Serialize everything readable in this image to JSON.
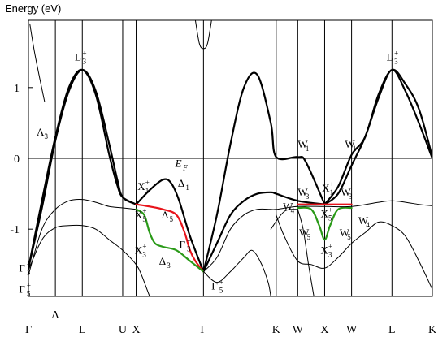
{
  "chart_data": {
    "type": "line",
    "title": "",
    "ylabel": "Energy (eV)",
    "xlabel": "",
    "ylim": [
      -1.95,
      1.95
    ],
    "grid": false,
    "legend": "none",
    "x_ticks": [
      {
        "label": "Γ",
        "sub": "",
        "sup": "",
        "x": 0
      },
      {
        "label": "Λ",
        "sub": "",
        "sup": "",
        "x": 1
      },
      {
        "label": "L",
        "sub": "",
        "sup": "",
        "x": 2
      },
      {
        "label": "U",
        "sub": "",
        "sup": "",
        "x": 3.5
      },
      {
        "label": "X",
        "sub": "",
        "sup": "",
        "x": 4
      },
      {
        "label": "Γ",
        "sub": "",
        "sup": "",
        "x": 6.5
      },
      {
        "label": "K",
        "sub": "",
        "sup": "",
        "x": 9.2
      },
      {
        "label": "W",
        "sub": "",
        "sup": "",
        "x": 10
      },
      {
        "label": "X",
        "sub": "",
        "sup": "",
        "x": 11
      },
      {
        "label": "W",
        "sub": "",
        "sup": "",
        "x": 12
      },
      {
        "label": "L",
        "sub": "",
        "sup": "",
        "x": 13.5
      },
      {
        "label": "K",
        "sub": "",
        "sup": "",
        "x": 15
      }
    ],
    "y_ticks": [
      {
        "label": "1",
        "value": 1
      },
      {
        "label": "0",
        "value": 0
      },
      {
        "label": "-1",
        "value": -1
      }
    ],
    "fermi_level": 0,
    "series": [
      {
        "color": "#000000",
        "width": 1,
        "points": [
          [
            0.05,
            1.9
          ],
          [
            0.25,
            1.45
          ],
          [
            0.6,
            0.8
          ]
        ]
      },
      {
        "color": "#000000",
        "width": 1,
        "points": [
          [
            0,
            -1.65
          ],
          [
            0.5,
            -1.0
          ],
          [
            1,
            -0.72
          ],
          [
            1.5,
            -0.6
          ],
          [
            2,
            -0.58
          ],
          [
            2.5,
            -0.62
          ],
          [
            3,
            -0.68
          ],
          [
            3.5,
            -0.7
          ],
          [
            4,
            -0.72
          ]
        ]
      },
      {
        "color": "#000000",
        "width": 1,
        "points": [
          [
            0,
            -1.58
          ],
          [
            0.5,
            -1.15
          ],
          [
            1,
            -0.98
          ],
          [
            1.5,
            -0.95
          ],
          [
            2,
            -0.95
          ],
          [
            2.5,
            -1.0
          ],
          [
            3,
            -1.15
          ],
          [
            3.5,
            -1.3
          ],
          [
            4,
            -1.5
          ],
          [
            4.2,
            -1.65
          ],
          [
            4.5,
            -1.95
          ]
        ]
      },
      {
        "color": "#000000",
        "width": 2.2,
        "points": [
          [
            0,
            -1.55
          ],
          [
            0.5,
            -0.7
          ],
          [
            1,
            0.25
          ],
          [
            1.5,
            0.95
          ],
          [
            2,
            1.25
          ],
          [
            2.5,
            0.95
          ],
          [
            3,
            0.2
          ],
          [
            3.3,
            -0.3
          ],
          [
            3.5,
            -0.55
          ],
          [
            4,
            -0.65
          ]
        ]
      },
      {
        "color": "#000000",
        "width": 2.2,
        "points": [
          [
            0,
            -1.55
          ],
          [
            0.5,
            -0.6
          ],
          [
            1,
            0.3
          ],
          [
            1.5,
            1.0
          ],
          [
            2,
            1.25
          ],
          [
            2.5,
            0.9
          ],
          [
            3,
            0.05
          ],
          [
            3.3,
            -0.38
          ],
          [
            3.5,
            -0.55
          ],
          [
            4,
            -0.65
          ]
        ]
      },
      {
        "color": "#000000",
        "width": 2.2,
        "points": [
          [
            4,
            -0.65
          ],
          [
            4.5,
            -0.45
          ],
          [
            5,
            -0.3
          ],
          [
            5.3,
            -0.35
          ],
          [
            5.6,
            -0.6
          ],
          [
            6,
            -1.1
          ],
          [
            6.5,
            -1.6
          ]
        ]
      },
      {
        "color": "#000000",
        "width": 2.2,
        "points": [
          [
            6.5,
            -1.6
          ],
          [
            7,
            -0.8
          ],
          [
            7.5,
            0.2
          ],
          [
            8,
            1.0
          ],
          [
            8.5,
            1.18
          ],
          [
            9,
            0.5
          ],
          [
            9.2,
            0.02
          ],
          [
            10,
            0.02
          ],
          [
            10.3,
            -0.05
          ],
          [
            11,
            -0.65
          ]
        ]
      },
      {
        "color": "#000000",
        "width": 2.2,
        "points": [
          [
            6.5,
            -1.6
          ],
          [
            7,
            -1.2
          ],
          [
            7.5,
            -0.8
          ],
          [
            8,
            -0.6
          ],
          [
            8.5,
            -0.5
          ],
          [
            9,
            -0.48
          ],
          [
            9.2,
            -0.5
          ],
          [
            10,
            -0.6
          ],
          [
            11,
            -0.65
          ]
        ]
      },
      {
        "color": "#000000",
        "width": 2.2,
        "points": [
          [
            11,
            -0.65
          ],
          [
            11.5,
            -0.4
          ],
          [
            12,
            0.05
          ],
          [
            12.5,
            0.3
          ],
          [
            13,
            0.9
          ],
          [
            13.5,
            1.25
          ],
          [
            14,
            1.05
          ],
          [
            14.5,
            0.7
          ],
          [
            15,
            0.02
          ]
        ]
      },
      {
        "color": "#000000",
        "width": 2.2,
        "points": [
          [
            11,
            -0.65
          ],
          [
            11.5,
            -0.5
          ],
          [
            12,
            -0.1
          ],
          [
            12.5,
            0.3
          ],
          [
            13,
            0.85
          ],
          [
            13.5,
            1.25
          ],
          [
            14,
            0.95
          ],
          [
            14.5,
            0.5
          ],
          [
            15,
            0.0
          ]
        ]
      },
      {
        "color": "#e8141b",
        "width": 2.2,
        "points": [
          [
            4,
            -0.65
          ],
          [
            4.5,
            -0.68
          ],
          [
            5,
            -0.72
          ],
          [
            5.5,
            -0.8
          ],
          [
            5.8,
            -1.05
          ],
          [
            6,
            -1.3
          ],
          [
            6.2,
            -1.45
          ],
          [
            6.5,
            -1.6
          ]
        ]
      },
      {
        "color": "#e8141b",
        "width": 2.2,
        "points": [
          [
            10,
            -0.65
          ],
          [
            10.5,
            -0.65
          ],
          [
            11,
            -0.65
          ],
          [
            11.5,
            -0.65
          ],
          [
            12,
            -0.65
          ]
        ]
      },
      {
        "color": "#2a9a18",
        "width": 2.2,
        "points": [
          [
            4,
            -0.72
          ],
          [
            4.3,
            -0.8
          ],
          [
            4.5,
            -1.05
          ],
          [
            4.7,
            -1.2
          ],
          [
            5,
            -1.25
          ],
          [
            5.5,
            -1.3
          ],
          [
            6,
            -1.45
          ],
          [
            6.5,
            -1.6
          ]
        ]
      },
      {
        "color": "#2a9a18",
        "width": 2.2,
        "points": [
          [
            10,
            -0.7
          ],
          [
            10.5,
            -0.72
          ],
          [
            10.8,
            -0.95
          ],
          [
            11,
            -1.15
          ],
          [
            11.2,
            -0.95
          ],
          [
            11.5,
            -0.72
          ],
          [
            12,
            -0.7
          ]
        ]
      },
      {
        "color": "#000000",
        "width": 1,
        "points": [
          [
            6.5,
            -1.6
          ],
          [
            7,
            -1.4
          ],
          [
            7.5,
            -1.0
          ],
          [
            8,
            -0.8
          ],
          [
            8.5,
            -0.72
          ],
          [
            9,
            -0.72
          ],
          [
            9.2,
            -0.72
          ],
          [
            10,
            -0.68
          ],
          [
            11,
            -0.68
          ],
          [
            12,
            -0.68
          ],
          [
            13,
            -0.62
          ],
          [
            13.5,
            -0.6
          ],
          [
            14,
            -0.62
          ],
          [
            14.5,
            -0.65
          ],
          [
            15,
            -0.67
          ]
        ]
      },
      {
        "color": "#000000",
        "width": 1,
        "points": [
          [
            6.5,
            -1.6
          ],
          [
            7,
            -1.75
          ],
          [
            7.5,
            -1.6
          ],
          [
            8,
            -1.4
          ],
          [
            8.3,
            -1.3
          ],
          [
            8.6,
            -1.45
          ],
          [
            8.9,
            -1.75
          ],
          [
            9.0,
            -1.95
          ]
        ]
      },
      {
        "color": "#000000",
        "width": 1,
        "points": [
          [
            9.2,
            -0.8
          ],
          [
            9.5,
            -1.1
          ],
          [
            10,
            -1.45
          ],
          [
            10.5,
            -1.5
          ],
          [
            11,
            -1.55
          ],
          [
            11.5,
            -1.4
          ],
          [
            12,
            -1.2
          ],
          [
            12.5,
            -1.05
          ],
          [
            13,
            -0.9
          ],
          [
            13.5,
            -0.95
          ],
          [
            14,
            -1.1
          ],
          [
            14.5,
            -1.45
          ],
          [
            15,
            -1.85
          ]
        ]
      },
      {
        "color": "#000000",
        "width": 1,
        "points": [
          [
            9.0,
            -1.0
          ],
          [
            9.5,
            -0.75
          ],
          [
            10,
            -0.72
          ]
        ]
      },
      {
        "color": "#000000",
        "width": 1,
        "points": [
          [
            10,
            -0.72
          ],
          [
            10.2,
            -1.0
          ],
          [
            10.4,
            -1.5
          ],
          [
            10.6,
            -1.95
          ]
        ]
      },
      {
        "color": "#000000",
        "width": 1,
        "points": [
          [
            6.2,
            1.95
          ],
          [
            6.35,
            1.62
          ],
          [
            6.5,
            1.55
          ],
          [
            6.65,
            1.62
          ],
          [
            6.8,
            1.95
          ]
        ]
      }
    ],
    "annotations": [
      {
        "text": "L",
        "sub": "3",
        "sup": "+",
        "x": 1.72,
        "y": 1.38
      },
      {
        "text": "L",
        "sub": "3",
        "sup": "+",
        "x": 13.3,
        "y": 1.38
      },
      {
        "text": "Λ",
        "sub": "3",
        "sup": "",
        "x": 0.3,
        "y": 0.32
      },
      {
        "text": "X",
        "sub": "1",
        "sup": "+",
        "x": 4.05,
        "y": -0.45
      },
      {
        "text": "Δ",
        "sub": "1",
        "sup": "",
        "x": 5.55,
        "y": -0.4
      },
      {
        "text": "X",
        "sub": "5",
        "sup": "+",
        "x": 3.95,
        "y": -0.85
      },
      {
        "text": "Δ",
        "sub": "5",
        "sup": "",
        "x": 4.95,
        "y": -0.85
      },
      {
        "text": "X",
        "sub": "3",
        "sup": "+",
        "x": 3.95,
        "y": -1.35
      },
      {
        "text": "Γ",
        "sub": "3",
        "sup": "+",
        "x": 5.6,
        "y": -1.27
      },
      {
        "text": "Δ",
        "sub": "3",
        "sup": "",
        "x": 4.85,
        "y": -1.5
      },
      {
        "text": "Γ",
        "sub": "3",
        "sup": "+",
        "x": -0.35,
        "y": -1.6
      },
      {
        "text": "Γ",
        "sub": "5",
        "sup": "+",
        "x": -0.35,
        "y": -1.9
      },
      {
        "text": "Γ",
        "sub": "5",
        "sup": "+",
        "x": 6.8,
        "y": -1.85
      },
      {
        "text": "E",
        "sub": "F",
        "sup": "",
        "x": 5.45,
        "y": -0.12,
        "italic": true
      },
      {
        "text": "W",
        "sub": "1",
        "sup": "",
        "x": 10.0,
        "y": 0.15
      },
      {
        "text": "W",
        "sub": "1",
        "sup": "",
        "x": 11.75,
        "y": 0.15
      },
      {
        "text": "X",
        "sub": "1",
        "sup": "+",
        "x": 10.9,
        "y": -0.47
      },
      {
        "text": "W",
        "sub": "3",
        "sup": "",
        "x": 10.0,
        "y": -0.53
      },
      {
        "text": "W",
        "sub": "3",
        "sup": "",
        "x": 11.6,
        "y": -0.53
      },
      {
        "text": "W",
        "sub": "4",
        "sup": "",
        "x": 9.45,
        "y": -0.73
      },
      {
        "text": "X",
        "sub": "5",
        "sup": "+",
        "x": 10.85,
        "y": -0.83
      },
      {
        "text": "W",
        "sub": "4",
        "sup": "",
        "x": 12.25,
        "y": -0.93
      },
      {
        "text": "W",
        "sub": "5",
        "sup": "",
        "x": 10.05,
        "y": -1.1
      },
      {
        "text": "W",
        "sub": "5",
        "sup": "",
        "x": 11.55,
        "y": -1.1
      },
      {
        "text": "X",
        "sub": "3",
        "sup": "+",
        "x": 10.85,
        "y": -1.35
      }
    ]
  }
}
